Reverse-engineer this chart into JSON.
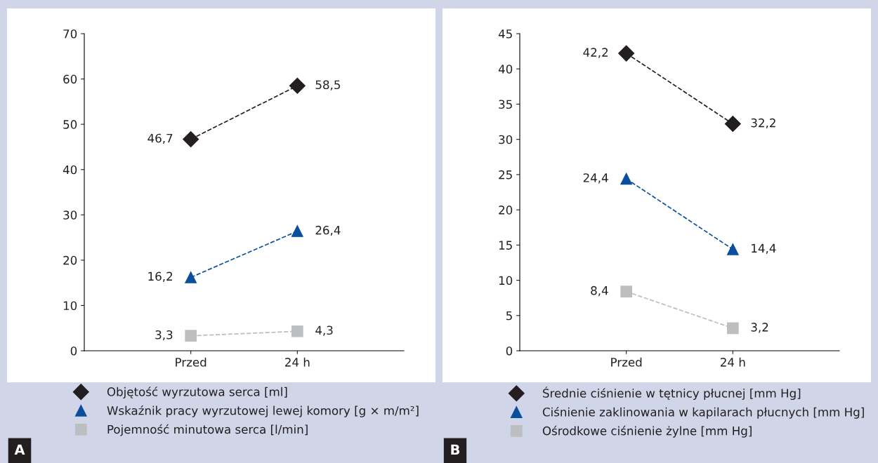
{
  "chart_data": [
    {
      "type": "line",
      "categories": [
        "Przed",
        "24 h"
      ],
      "ylim": [
        0,
        70
      ],
      "yticks": [
        0,
        10,
        20,
        30,
        40,
        50,
        60,
        70
      ],
      "grid": false,
      "legend": "bottom",
      "line_style": "dashed",
      "annotations": [
        "A"
      ],
      "series": [
        {
          "name": "Objętość wyrzutowa serca [ml]",
          "color": "#231f20",
          "marker": "diamond",
          "values": [
            46.7,
            58.5
          ],
          "value_labels": [
            "46,7",
            "58,5"
          ]
        },
        {
          "name": "Wskaźnik pracy wyrzutowej lewej komory [g × m/m²]",
          "color": "#0b4f9c",
          "marker": "triangle",
          "values": [
            16.2,
            26.4
          ],
          "value_labels": [
            "16,2",
            "26,4"
          ]
        },
        {
          "name": "Pojemność minutowa serca [l/min]",
          "color": "#bcbec0",
          "marker": "square",
          "values": [
            3.3,
            4.3
          ],
          "value_labels": [
            "3,3",
            "4,3"
          ]
        }
      ]
    },
    {
      "type": "line",
      "categories": [
        "Przed",
        "24 h"
      ],
      "ylim": [
        0,
        45
      ],
      "yticks": [
        0,
        5,
        10,
        15,
        20,
        25,
        30,
        35,
        40,
        45
      ],
      "grid": false,
      "legend": "bottom",
      "line_style": "dashed",
      "annotations": [
        "B"
      ],
      "series": [
        {
          "name": "Średnie ciśnienie w tętnicy płucnej [mm Hg]",
          "color": "#231f20",
          "marker": "diamond",
          "values": [
            42.2,
            32.2
          ],
          "value_labels": [
            "42,2",
            "32,2"
          ]
        },
        {
          "name": "Ciśnienie zaklinowania w kapilarach płucnych [mm Hg]",
          "color": "#0b4f9c",
          "marker": "triangle",
          "values": [
            24.4,
            14.4
          ],
          "value_labels": [
            "24,4",
            "14,4"
          ]
        },
        {
          "name": "Ośrodkowe ciśnienie żylne [mm Hg]",
          "color": "#bcbec0",
          "marker": "square",
          "values": [
            8.4,
            3.2
          ],
          "value_labels": [
            "8,4",
            "3,2"
          ]
        }
      ]
    }
  ]
}
